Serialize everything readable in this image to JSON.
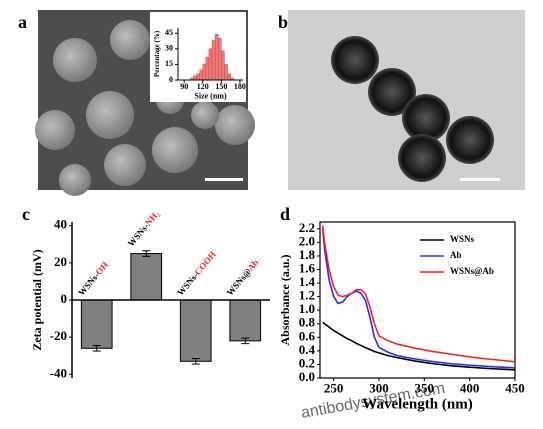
{
  "panel_labels": [
    "a",
    "b",
    "c",
    "d"
  ],
  "watermark": "antibodysystem.com",
  "chart_data": [
    {
      "type": "histogram",
      "xlabel": "Size (nm)",
      "ylabel": "Percentage (%)",
      "bins": [
        100,
        105,
        110,
        115,
        120,
        125,
        130,
        135,
        140,
        145,
        150,
        155,
        160,
        165,
        170
      ],
      "values": [
        2,
        4,
        6,
        10,
        15,
        22,
        30,
        38,
        44,
        40,
        28,
        15,
        6,
        2
      ],
      "color": "#f07878",
      "xlim": [
        80,
        185
      ],
      "xticks": [
        90,
        120,
        150,
        180
      ],
      "ylim": [
        0,
        50
      ],
      "yticks": [
        0,
        15,
        30,
        45
      ]
    },
    {
      "type": "bar",
      "ylabel": "Zeta potential (mV)",
      "categories": [
        {
          "prefix": "WSNs-",
          "suffix": "OH"
        },
        {
          "prefix": "WSNs-",
          "suffix": "NH₂"
        },
        {
          "prefix": "WSNs-",
          "suffix": "COOH"
        },
        {
          "prefix": "WSNs@",
          "suffix": "Ab"
        }
      ],
      "values": [
        -26,
        25,
        -33,
        -22
      ],
      "errors": [
        1.5,
        1.5,
        1.5,
        1.5
      ],
      "color": "#808080",
      "ylim": [
        -42,
        42
      ],
      "yticks": [
        -40,
        -20,
        0,
        20,
        40
      ]
    },
    {
      "type": "line",
      "xlabel": "Wavelength (nm)",
      "ylabel": "Absorbance (a.u.)",
      "x": [
        238,
        240,
        245,
        250,
        255,
        260,
        265,
        270,
        275,
        280,
        285,
        290,
        295,
        300,
        310,
        320,
        340,
        360,
        380,
        400,
        420,
        450
      ],
      "series": [
        {
          "name": "WSNs",
          "color": "#000000",
          "values": [
            0.82,
            0.8,
            0.75,
            0.7,
            0.66,
            0.62,
            0.58,
            0.55,
            0.51,
            0.48,
            0.45,
            0.42,
            0.39,
            0.37,
            0.33,
            0.3,
            0.25,
            0.21,
            0.18,
            0.16,
            0.14,
            0.12
          ]
        },
        {
          "name": "Ab",
          "color": "#1f2fff",
          "values": [
            2.2,
            1.9,
            1.45,
            1.2,
            1.1,
            1.12,
            1.2,
            1.25,
            1.28,
            1.25,
            1.15,
            0.9,
            0.6,
            0.45,
            0.38,
            0.33,
            0.28,
            0.24,
            0.21,
            0.19,
            0.17,
            0.15
          ]
        },
        {
          "name": "WSNs@Ab",
          "color": "#ff2020",
          "values": [
            2.25,
            2.0,
            1.6,
            1.35,
            1.22,
            1.2,
            1.22,
            1.25,
            1.3,
            1.3,
            1.25,
            1.05,
            0.8,
            0.62,
            0.55,
            0.5,
            0.44,
            0.39,
            0.35,
            0.31,
            0.28,
            0.24
          ]
        }
      ],
      "xlim": [
        235,
        450
      ],
      "xticks": [
        250,
        300,
        350,
        400,
        450
      ],
      "ylim": [
        0,
        2.3
      ],
      "yticks": [
        {
          "value": 0,
          "label": "0.0"
        },
        0.2,
        0.4,
        0.6,
        0.8,
        {
          "value": 1,
          "label": "1.0"
        },
        1.2,
        1.4,
        1.6,
        1.8,
        {
          "value": 2,
          "label": "2.0"
        },
        2.2
      ],
      "legend": "top-right"
    }
  ]
}
